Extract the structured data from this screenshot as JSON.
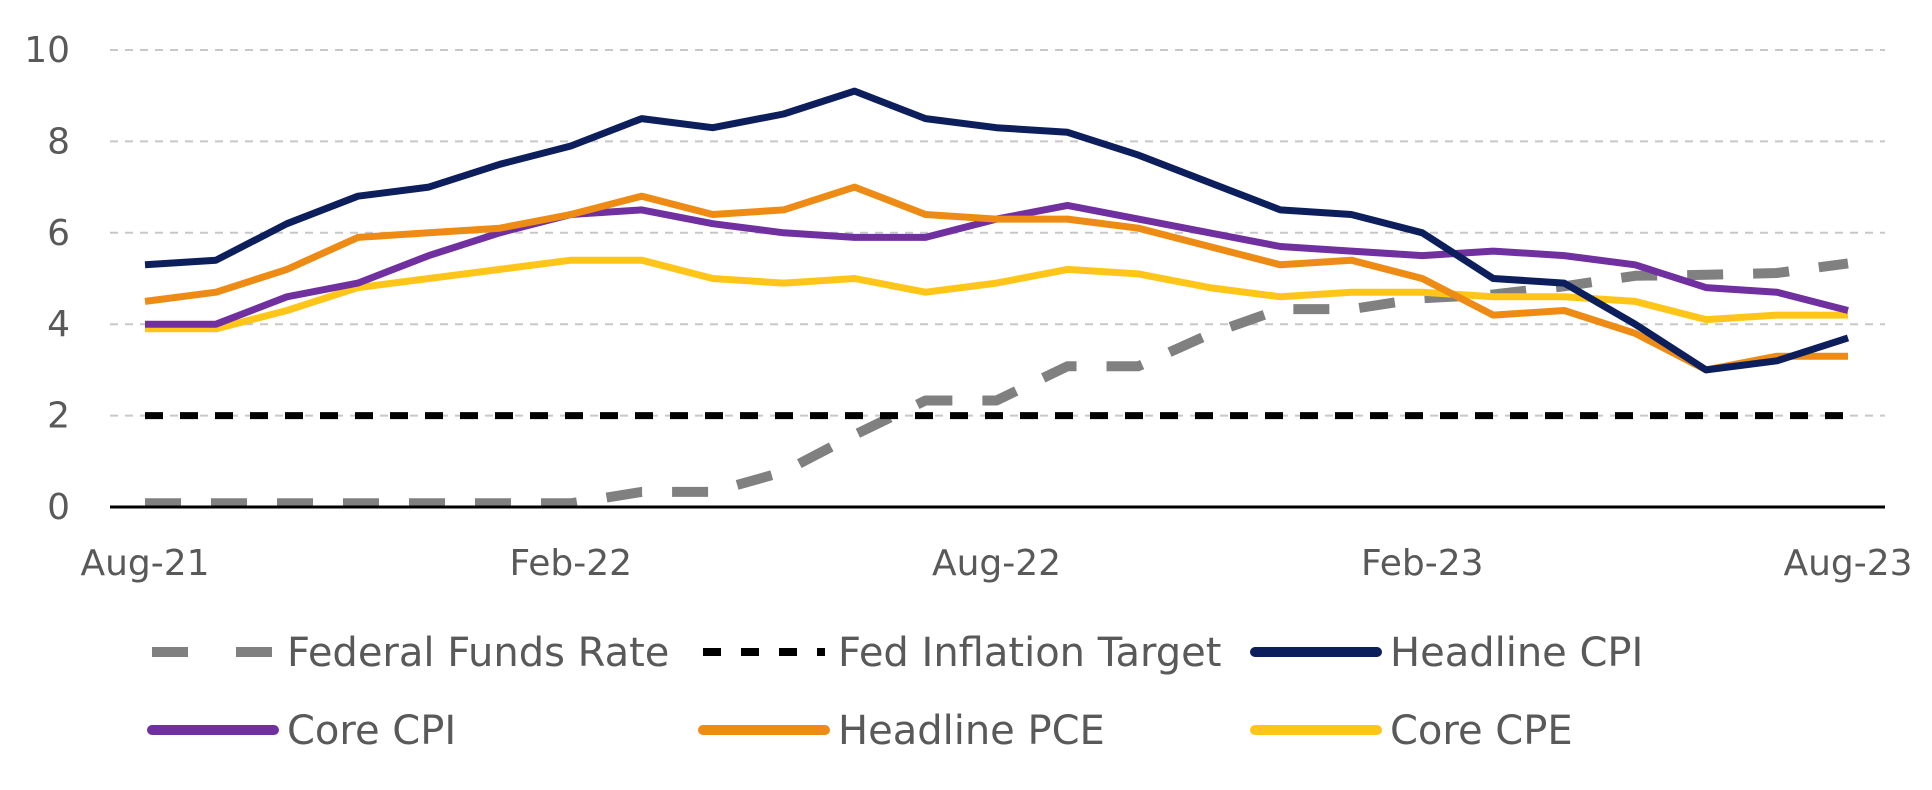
{
  "chart_data": {
    "type": "line",
    "title": "",
    "xlabel": "",
    "ylabel": "",
    "ylim": [
      0,
      10
    ],
    "y_ticks": [
      "0",
      "2",
      "4",
      "6",
      "8",
      "10"
    ],
    "x_tick_labels": [
      "Aug-21",
      "Feb-22",
      "Aug-22",
      "Feb-23",
      "Aug-23"
    ],
    "grid": true,
    "legend_position": "bottom",
    "x": [
      "Aug-21",
      "Sep-21",
      "Oct-21",
      "Nov-21",
      "Dec-21",
      "Jan-22",
      "Feb-22",
      "Mar-22",
      "Apr-22",
      "May-22",
      "Jun-22",
      "Jul-22",
      "Aug-22",
      "Sep-22",
      "Oct-22",
      "Nov-22",
      "Dec-22",
      "Jan-23",
      "Feb-23",
      "Mar-23",
      "Apr-23",
      "May-23",
      "Jun-23",
      "Jul-23",
      "Aug-23"
    ],
    "series": [
      {
        "name": "Federal Funds Rate",
        "color": "#808080",
        "style": "dashed-long",
        "values": [
          0.08,
          0.08,
          0.08,
          0.08,
          0.08,
          0.08,
          0.08,
          0.33,
          0.33,
          0.77,
          1.58,
          2.33,
          2.33,
          3.08,
          3.08,
          3.78,
          4.33,
          4.33,
          4.57,
          4.65,
          4.83,
          5.06,
          5.08,
          5.12,
          5.33
        ]
      },
      {
        "name": "Fed Inflation Target",
        "color": "#000000",
        "style": "dashed",
        "values": [
          2,
          2,
          2,
          2,
          2,
          2,
          2,
          2,
          2,
          2,
          2,
          2,
          2,
          2,
          2,
          2,
          2,
          2,
          2,
          2,
          2,
          2,
          2,
          2,
          2
        ]
      },
      {
        "name": "Headline CPI",
        "color": "#0c1f5c",
        "style": "solid",
        "values": [
          5.3,
          5.4,
          6.2,
          6.8,
          7.0,
          7.5,
          7.9,
          8.5,
          8.3,
          8.6,
          9.1,
          8.5,
          8.3,
          8.2,
          7.7,
          7.1,
          6.5,
          6.4,
          6.0,
          5.0,
          4.9,
          4.0,
          3.0,
          3.2,
          3.7
        ]
      },
      {
        "name": "Core CPI",
        "color": "#7030a0",
        "style": "solid",
        "values": [
          4.0,
          4.0,
          4.6,
          4.9,
          5.5,
          6.0,
          6.4,
          6.5,
          6.2,
          6.0,
          5.9,
          5.9,
          6.3,
          6.6,
          6.3,
          6.0,
          5.7,
          5.6,
          5.5,
          5.6,
          5.5,
          5.3,
          4.8,
          4.7,
          4.3
        ]
      },
      {
        "name": "Headline PCE",
        "color": "#ee8b14",
        "style": "solid",
        "values": [
          4.5,
          4.7,
          5.2,
          5.9,
          6.0,
          6.1,
          6.4,
          6.8,
          6.4,
          6.5,
          7.0,
          6.4,
          6.3,
          6.3,
          6.1,
          5.7,
          5.3,
          5.4,
          5.0,
          4.2,
          4.3,
          3.8,
          3.0,
          3.3,
          3.3
        ]
      },
      {
        "name": "Core CPE",
        "color": "#ffc619",
        "style": "solid",
        "values": [
          3.9,
          3.9,
          4.3,
          4.8,
          5.0,
          5.2,
          5.4,
          5.4,
          5.0,
          4.9,
          5.0,
          4.7,
          4.9,
          5.2,
          5.1,
          4.8,
          4.6,
          4.7,
          4.7,
          4.6,
          4.6,
          4.5,
          4.1,
          4.2,
          4.2
        ]
      }
    ]
  }
}
